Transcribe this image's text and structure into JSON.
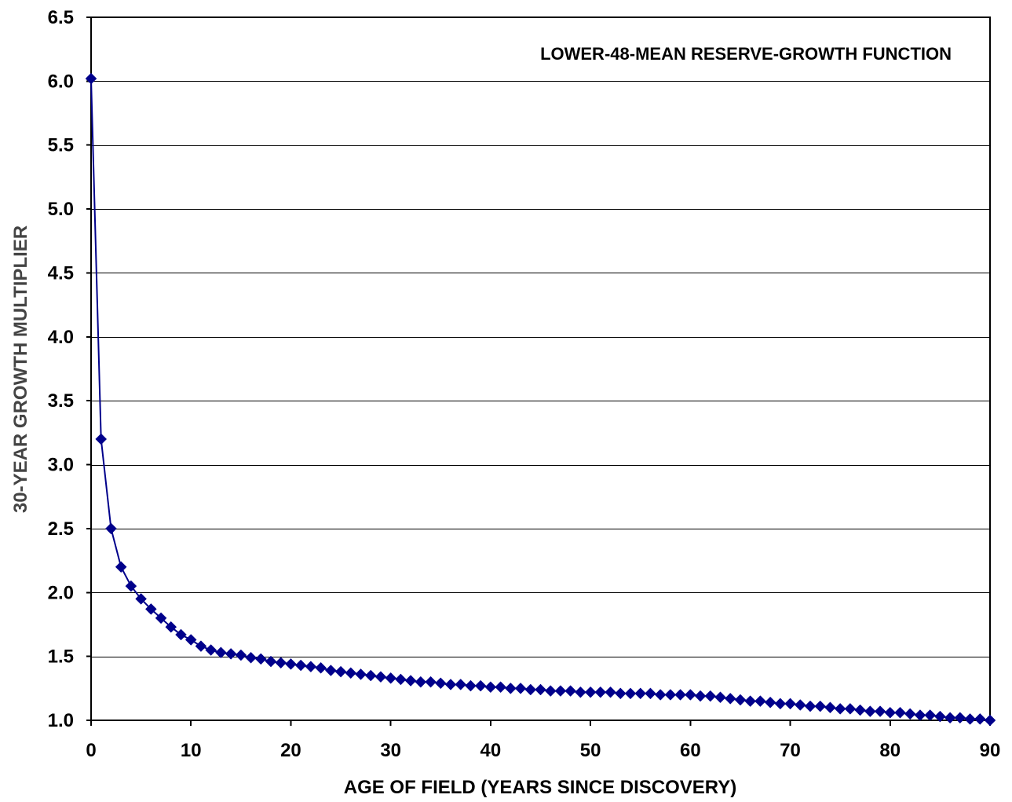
{
  "chart_data": {
    "type": "line",
    "title": "",
    "annotation": "LOWER-48-MEAN RESERVE-GROWTH FUNCTION",
    "xlabel": "AGE OF FIELD (YEARS SINCE DISCOVERY)",
    "ylabel": "30-YEAR GROWTH MULTIPLIER",
    "xlim": [
      0,
      90
    ],
    "ylim": [
      1.0,
      6.5
    ],
    "x_ticks": [
      0,
      10,
      20,
      30,
      40,
      50,
      60,
      70,
      80,
      90
    ],
    "x_tick_labels": [
      "0",
      "10",
      "20",
      "30",
      "40",
      "50",
      "60",
      "70",
      "80",
      "90"
    ],
    "y_ticks": [
      1.0,
      1.5,
      2.0,
      2.5,
      3.0,
      3.5,
      4.0,
      4.5,
      5.0,
      5.5,
      6.0,
      6.5
    ],
    "y_tick_labels": [
      "1.0",
      "1.5",
      "2.0",
      "2.5",
      "3.0",
      "3.5",
      "4.0",
      "4.5",
      "5.0",
      "5.5",
      "6.0",
      "6.5"
    ],
    "grid": "horizontal",
    "legend": "none",
    "series": [
      {
        "color": "#00008B",
        "marker": "diamond",
        "x": [
          0,
          1,
          2,
          3,
          4,
          5,
          6,
          7,
          8,
          9,
          10,
          11,
          12,
          13,
          14,
          15,
          16,
          17,
          18,
          19,
          20,
          21,
          22,
          23,
          24,
          25,
          26,
          27,
          28,
          29,
          30,
          31,
          32,
          33,
          34,
          35,
          36,
          37,
          38,
          39,
          40,
          41,
          42,
          43,
          44,
          45,
          46,
          47,
          48,
          49,
          50,
          51,
          52,
          53,
          54,
          55,
          56,
          57,
          58,
          59,
          60,
          61,
          62,
          63,
          64,
          65,
          66,
          67,
          68,
          69,
          70,
          71,
          72,
          73,
          74,
          75,
          76,
          77,
          78,
          79,
          80,
          81,
          82,
          83,
          84,
          85,
          86,
          87,
          88,
          89,
          90
        ],
        "values": [
          6.02,
          3.2,
          2.5,
          2.2,
          2.05,
          1.95,
          1.87,
          1.8,
          1.73,
          1.67,
          1.63,
          1.58,
          1.55,
          1.53,
          1.52,
          1.51,
          1.49,
          1.48,
          1.46,
          1.45,
          1.44,
          1.43,
          1.42,
          1.41,
          1.39,
          1.38,
          1.37,
          1.36,
          1.35,
          1.34,
          1.33,
          1.32,
          1.31,
          1.3,
          1.3,
          1.29,
          1.28,
          1.28,
          1.27,
          1.27,
          1.26,
          1.26,
          1.25,
          1.25,
          1.24,
          1.24,
          1.23,
          1.23,
          1.23,
          1.22,
          1.22,
          1.22,
          1.22,
          1.21,
          1.21,
          1.21,
          1.21,
          1.2,
          1.2,
          1.2,
          1.2,
          1.19,
          1.19,
          1.18,
          1.17,
          1.16,
          1.15,
          1.15,
          1.14,
          1.13,
          1.13,
          1.12,
          1.11,
          1.11,
          1.1,
          1.09,
          1.09,
          1.08,
          1.07,
          1.07,
          1.06,
          1.06,
          1.05,
          1.04,
          1.04,
          1.03,
          1.02,
          1.02,
          1.01,
          1.01,
          1.0
        ]
      }
    ]
  }
}
